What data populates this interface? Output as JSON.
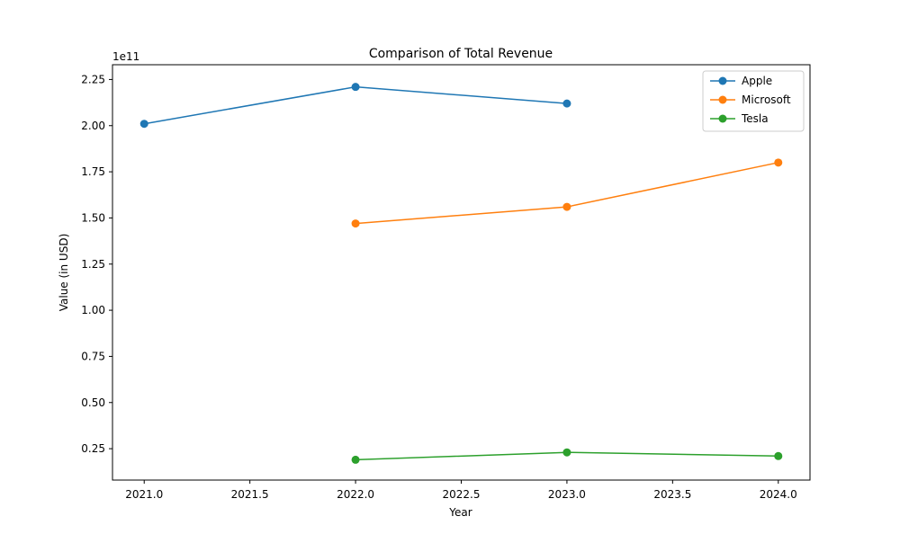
{
  "chart_data": {
    "type": "line",
    "title": "Comparison of Total Revenue",
    "xlabel": "Year",
    "ylabel": "Value (in USD)",
    "y_offset_label": "1e11",
    "xlim": [
      2020.85,
      2024.15
    ],
    "ylim": [
      0.08,
      2.33
    ],
    "y_scale_note": "values in units of 1e11 USD",
    "x_ticks": [
      "2021.0",
      "2021.5",
      "2022.0",
      "2022.5",
      "2023.0",
      "2023.5",
      "2024.0"
    ],
    "x_tick_values": [
      2021.0,
      2021.5,
      2022.0,
      2022.5,
      2023.0,
      2023.5,
      2024.0
    ],
    "y_ticks": [
      "0.25",
      "0.50",
      "0.75",
      "1.00",
      "1.25",
      "1.50",
      "1.75",
      "2.00",
      "2.25"
    ],
    "y_tick_values": [
      0.25,
      0.5,
      0.75,
      1.0,
      1.25,
      1.5,
      1.75,
      2.0,
      2.25
    ],
    "grid": false,
    "legend_position": "top-right",
    "series": [
      {
        "name": "Apple",
        "color": "#1f77b4",
        "x": [
          2021,
          2022,
          2023
        ],
        "values": [
          2.01,
          2.21,
          2.12
        ]
      },
      {
        "name": "Microsoft",
        "color": "#ff7f0e",
        "x": [
          2022,
          2023,
          2024
        ],
        "values": [
          1.47,
          1.56,
          1.8
        ]
      },
      {
        "name": "Tesla",
        "color": "#2ca02c",
        "x": [
          2022,
          2023,
          2024
        ],
        "values": [
          0.19,
          0.23,
          0.21
        ]
      }
    ]
  }
}
